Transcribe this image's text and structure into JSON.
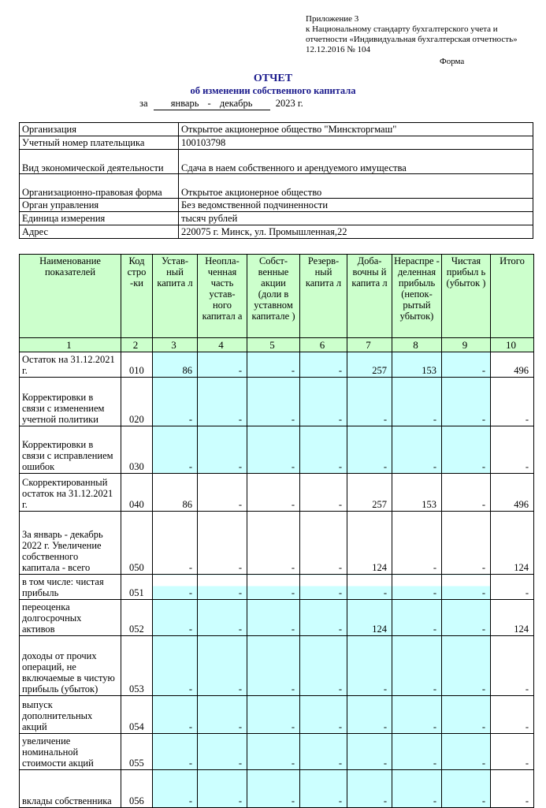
{
  "annex": [
    "Приложение 3",
    "к Национальному стандарту бухгалтерского учета и",
    "отчетности «Индивидуальная бухгалтерская отчетность»",
    "12.12.2016 № 104"
  ],
  "forma": "Форма",
  "title": "ОТЧЕТ",
  "subtitle": "об изменении собственного капитала",
  "period": {
    "prefix": "за",
    "range": "январь - декабрь",
    "year": "2023 г."
  },
  "info": [
    {
      "label": "Организация",
      "value": "Открытое акционерное общество \"Минскторгмаш\""
    },
    {
      "label": "Учетный номер плательщика",
      "value": "100103798"
    },
    {
      "label": "Вид экономической деятельности",
      "value": "Сдача в наем собственного и арендуемого имущества"
    },
    {
      "label": "Организационно-правовая форма",
      "value": "Открытое акционерное общество"
    },
    {
      "label": "Орган управления",
      "value": "Без ведомственной подчиненности"
    },
    {
      "label": "Единица измерения",
      "value": "тысяч рублей"
    },
    {
      "label": "Адрес",
      "value": "220075 г. Минск, ул. Промышленная,22"
    }
  ],
  "columns": [
    "Наименование показателей",
    "Код стро -ки",
    "Устав- ный капита л",
    "Неопла- ченная часть устав- ного капитал а",
    "Собст- венные акции (доли в уставном капитале )",
    "Резерв- ный капита л",
    "Доба- вочны й капита л",
    "Нераспре - деленная прибыль (непок- рытый убыток)",
    "Чистая прибыл ь (убыток )",
    "Итого"
  ],
  "column_numbers": [
    "1",
    "2",
    "3",
    "4",
    "5",
    "6",
    "7",
    "8",
    "9",
    "10"
  ],
  "colors": {
    "header": "#ccffcc",
    "input_cell": "#ccffff",
    "title": "#1a1a8c"
  },
  "rows": [
    {
      "name": "Остаток на 31.12.2021 г.",
      "code": "010",
      "values": [
        "86",
        "-",
        "-",
        "-",
        "257",
        "153",
        "-",
        "496"
      ]
    },
    {
      "name": "Корректировки в связи с изменением учетной политики",
      "code": "020",
      "values": [
        "-",
        "-",
        "-",
        "-",
        "-",
        "-",
        "-",
        "-"
      ]
    },
    {
      "name": "Корректировки в связи с исправлением ошибок",
      "code": "030",
      "values": [
        "-",
        "-",
        "-",
        "-",
        "-",
        "-",
        "-",
        "-"
      ]
    },
    {
      "name": "Скорректированный остаток на 31.12.2021 г.",
      "code": "040",
      "values": [
        "86",
        "-",
        "-",
        "-",
        "257",
        "153",
        "-",
        "496"
      ]
    },
    {
      "name": "За январь - декабрь 2022 г. Увеличение собственного капитала - всего",
      "code": "050",
      "values": [
        "-",
        "-",
        "-",
        "-",
        "124",
        "-",
        "-",
        "124"
      ]
    },
    {
      "name": "в том числе: чистая прибыль",
      "code": "051",
      "values": [
        "-",
        "-",
        "-",
        "-",
        "-",
        "-",
        "-",
        "-"
      ]
    },
    {
      "name": "переоценка долгосрочных активов",
      "code": "052",
      "values": [
        "-",
        "-",
        "-",
        "-",
        "124",
        "-",
        "-",
        "124"
      ]
    },
    {
      "name": "доходы от прочих операций, не включаемые в чистую прибыль (убыток)",
      "code": "053",
      "values": [
        "-",
        "-",
        "-",
        "-",
        "-",
        "-",
        "-",
        "-"
      ]
    },
    {
      "name": "выпуск дополнительных акций",
      "code": "054",
      "values": [
        "-",
        "-",
        "-",
        "-",
        "-",
        "-",
        "-",
        "-"
      ]
    },
    {
      "name": "увеличение номинальной стоимости акций",
      "code": "055",
      "values": [
        "-",
        "-",
        "-",
        "-",
        "-",
        "-",
        "-",
        "-"
      ]
    },
    {
      "name": "вклады собственника",
      "code": "056",
      "values": [
        "-",
        "-",
        "-",
        "-",
        "-",
        "-",
        "-",
        "-"
      ]
    }
  ]
}
